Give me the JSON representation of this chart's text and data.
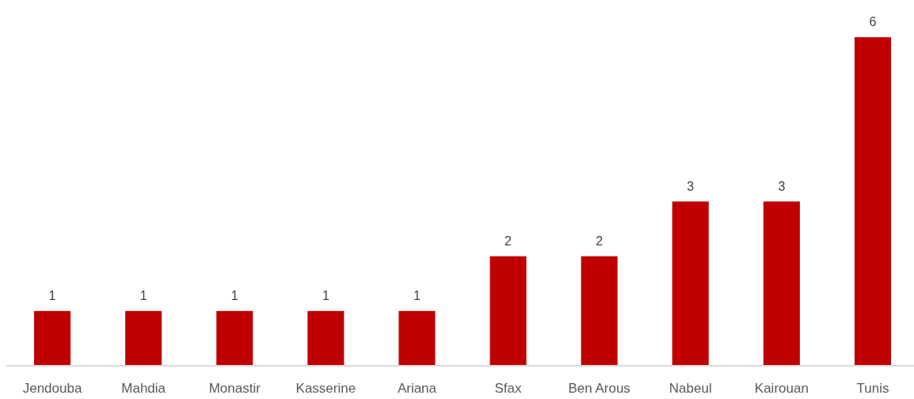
{
  "chart_data": {
    "type": "bar",
    "categories": [
      "Jendouba",
      "Mahdia",
      "Monastir",
      "Kasserine",
      "Ariana",
      "Sfax",
      "Ben Arous",
      "Nabeul",
      "Kairouan",
      "Tunis"
    ],
    "values": [
      1,
      1,
      1,
      1,
      1,
      2,
      2,
      3,
      3,
      6
    ],
    "color": "#c00000",
    "data_labels": true
  }
}
